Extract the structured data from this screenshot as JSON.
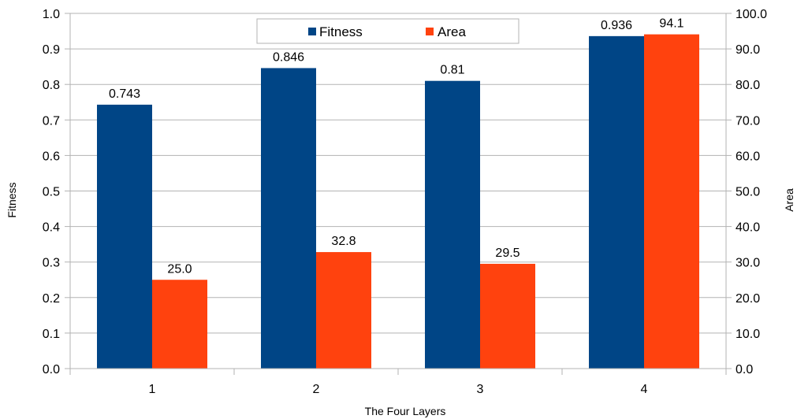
{
  "chart_data": {
    "type": "bar",
    "categories": [
      "1",
      "2",
      "3",
      "4"
    ],
    "series": [
      {
        "name": "Fitness",
        "axis": "left",
        "color": "#004586",
        "values": [
          0.743,
          0.846,
          0.81,
          0.936
        ],
        "labels": [
          "0.743",
          "0.846",
          "0.81",
          "0.936"
        ]
      },
      {
        "name": "Area",
        "axis": "right",
        "color": "#ff420e",
        "values": [
          25.0,
          32.8,
          29.5,
          94.1
        ],
        "labels": [
          "25.0",
          "32.8",
          "29.5",
          "94.1"
        ]
      }
    ],
    "xlabel": "The Four Layers",
    "ylabel": "Fitness",
    "y2label": "Area",
    "ylim": [
      0,
      1.0
    ],
    "y2lim": [
      0,
      100.0
    ],
    "yticks": [
      "0.0",
      "0.1",
      "0.2",
      "0.3",
      "0.4",
      "0.5",
      "0.6",
      "0.7",
      "0.8",
      "0.9",
      "1.0"
    ],
    "y2ticks": [
      "0.0",
      "10.0",
      "20.0",
      "30.0",
      "40.0",
      "50.0",
      "60.0",
      "70.0",
      "80.0",
      "90.0",
      "100.0"
    ],
    "grid": true,
    "legend": "top-center"
  }
}
